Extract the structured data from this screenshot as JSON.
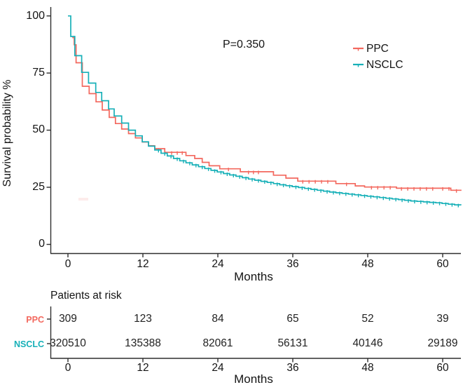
{
  "chart_data": {
    "type": "line",
    "subtype": "kaplan-meier-step-survival",
    "title": "",
    "pvalue": "P=0.350",
    "xlabel": "Months",
    "ylabel": "Survival probability %",
    "xlim": [
      0,
      63
    ],
    "ylim": [
      0,
      100
    ],
    "x_ticks": [
      0,
      12,
      24,
      36,
      48,
      60
    ],
    "y_ticks": [
      100,
      75,
      50,
      25,
      0
    ],
    "grid": "off",
    "legend_position": "inside-upper-right",
    "series": [
      {
        "name": "PPC",
        "color": "#f3685e",
        "points": [
          [
            0.7,
            90.5
          ],
          [
            1.0,
            87.4
          ],
          [
            1.3,
            79.5
          ],
          [
            2.3,
            69.2
          ],
          [
            3.4,
            66.0
          ],
          [
            4.5,
            62.4
          ],
          [
            5.5,
            58.8
          ],
          [
            6.6,
            55.6
          ],
          [
            7.6,
            52.9
          ],
          [
            8.6,
            50.5
          ],
          [
            9.7,
            48.5
          ],
          [
            10.8,
            46.6
          ],
          [
            11.9,
            44.8
          ],
          [
            12.9,
            43.2
          ],
          [
            13.9,
            41.9
          ],
          [
            15.5,
            40.3
          ],
          [
            18.9,
            38.9
          ],
          [
            20.3,
            37.6
          ],
          [
            21.5,
            35.9
          ],
          [
            22.6,
            34.4
          ],
          [
            24.3,
            33.1
          ],
          [
            27.6,
            31.8
          ],
          [
            32.9,
            30.3
          ],
          [
            34.9,
            29.0
          ],
          [
            36.8,
            27.7
          ],
          [
            42.9,
            26.6
          ],
          [
            46.0,
            25.6
          ],
          [
            47.5,
            25.1
          ],
          [
            52.6,
            24.6
          ],
          [
            61.3,
            23.7
          ],
          [
            63.0,
            23.7
          ]
        ],
        "censor_months": [
          1.1,
          16.6,
          17.5,
          18.3,
          25.7,
          28.9,
          29.7,
          30.5,
          37.6,
          38.6,
          39.6,
          40.6,
          41.6,
          44.6,
          48.6,
          49.6,
          50.6,
          51.6,
          53.4,
          54.4,
          55.4,
          56.4,
          57.4,
          58.4,
          60.0,
          61.0,
          62.2
        ]
      },
      {
        "name": "NSCLC",
        "color": "#17b0b8",
        "points": [
          [
            0,
            100
          ],
          [
            0.45,
            91
          ],
          [
            1.1,
            82.6
          ],
          [
            2.2,
            75.3
          ],
          [
            3.3,
            70.6
          ],
          [
            4.45,
            66.5
          ],
          [
            5.4,
            62.9
          ],
          [
            6.5,
            59.3
          ],
          [
            7.4,
            56.2
          ],
          [
            8.6,
            53.1
          ],
          [
            9.7,
            50.0
          ],
          [
            10.8,
            47.5
          ],
          [
            11.9,
            44.9
          ],
          [
            12.9,
            43.0
          ],
          [
            13.9,
            41.3
          ],
          [
            14.9,
            39.9
          ],
          [
            15.9,
            38.7
          ],
          [
            16.9,
            37.6
          ],
          [
            17.9,
            36.6
          ],
          [
            18.9,
            35.7
          ],
          [
            19.9,
            34.8
          ],
          [
            20.9,
            34.0
          ],
          [
            21.9,
            33.2
          ],
          [
            22.9,
            32.4
          ],
          [
            23.9,
            31.7
          ],
          [
            24.9,
            31.0
          ],
          [
            25.9,
            30.4
          ],
          [
            26.9,
            29.8
          ],
          [
            27.9,
            29.2
          ],
          [
            28.9,
            28.6
          ],
          [
            29.9,
            28.1
          ],
          [
            30.9,
            27.6
          ],
          [
            31.9,
            27.1
          ],
          [
            32.9,
            26.6
          ],
          [
            33.9,
            26.1
          ],
          [
            34.9,
            25.7
          ],
          [
            35.9,
            25.3
          ],
          [
            36.9,
            24.9
          ],
          [
            37.9,
            24.5
          ],
          [
            38.9,
            24.1
          ],
          [
            39.9,
            23.7
          ],
          [
            40.9,
            23.3
          ],
          [
            41.9,
            22.9
          ],
          [
            42.9,
            22.6
          ],
          [
            43.9,
            22.3
          ],
          [
            44.9,
            22.0
          ],
          [
            45.9,
            21.7
          ],
          [
            46.9,
            21.4
          ],
          [
            47.9,
            21.1
          ],
          [
            48.9,
            20.8
          ],
          [
            49.9,
            20.5
          ],
          [
            50.9,
            20.2
          ],
          [
            51.9,
            19.9
          ],
          [
            52.9,
            19.6
          ],
          [
            53.9,
            19.3
          ],
          [
            54.9,
            19.0
          ],
          [
            55.9,
            18.8
          ],
          [
            56.9,
            18.6
          ],
          [
            57.9,
            18.4
          ],
          [
            58.9,
            18.2
          ],
          [
            59.9,
            17.9
          ],
          [
            60.9,
            17.6
          ],
          [
            61.9,
            17.3
          ],
          [
            62.9,
            17.1
          ]
        ],
        "censor_months": [
          14.5,
          15.5,
          16.5,
          17.5,
          18.5,
          19.5,
          20.5,
          21.5,
          22.5,
          23.5,
          24.5,
          25.5,
          26.5,
          27.5,
          28.5,
          29.5,
          30.5,
          31.5,
          32.5,
          33.5,
          34.5,
          35.5,
          36.5,
          37.5,
          38.5,
          39.5,
          40.5,
          41.5,
          42.5,
          43.5,
          44.5,
          45.5,
          46.5,
          47.5,
          48.5,
          49.5,
          50.5,
          51.5,
          52.5,
          53.5,
          54.5,
          55.5,
          56.5,
          57.5,
          58.5,
          59.5,
          60.5,
          61.5,
          62.5
        ]
      }
    ],
    "risk_table": {
      "title": "Patients at risk",
      "time_points": [
        0,
        12,
        24,
        36,
        48,
        60
      ],
      "xlabel": "Months",
      "rows": [
        {
          "name": "PPC",
          "color": "#f3685e",
          "counts": [
            309,
            123,
            84,
            65,
            52,
            39
          ]
        },
        {
          "name": "NSCLC",
          "color": "#17b0b8",
          "counts": [
            320510,
            135388,
            82061,
            56131,
            40146,
            29189
          ]
        }
      ]
    }
  },
  "colors": {
    "ppc": "#f3685e",
    "nsclc": "#17b0b8",
    "axis": "#2e2e2e",
    "text": "#141414"
  }
}
